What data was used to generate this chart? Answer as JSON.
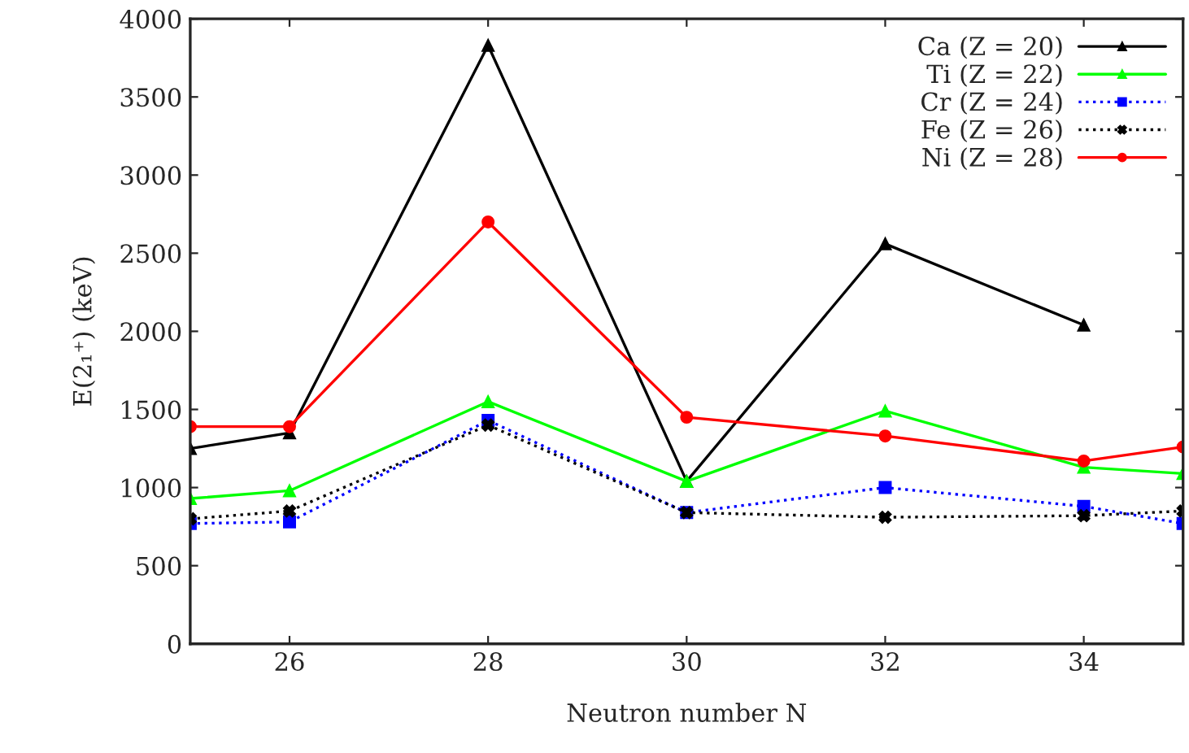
{
  "chart_data": {
    "type": "line",
    "xlabel": "Neutron number N",
    "ylabel": "E(2₁⁺) (keV)",
    "xlim": [
      25,
      35
    ],
    "xticks": [
      26,
      28,
      30,
      32,
      34
    ],
    "ylim": [
      0,
      4000
    ],
    "yticks": [
      0,
      500,
      1000,
      1500,
      2000,
      2500,
      3000,
      3500,
      4000
    ],
    "grid": false,
    "legend": "top right",
    "series": [
      {
        "name": "Ca (Z = 20)",
        "color": "#000000",
        "marker": "triangle",
        "line_style": "solid",
        "x": [
          25,
          26,
          28,
          30,
          32,
          34
        ],
        "values": [
          1250,
          1350,
          3830,
          1040,
          2560,
          2040
        ]
      },
      {
        "name": "Ti (Z = 22)",
        "color": "#00ff00",
        "marker": "triangle",
        "line_style": "solid",
        "x": [
          25,
          26,
          28,
          30,
          32,
          34,
          35
        ],
        "values": [
          930,
          980,
          1550,
          1040,
          1490,
          1130,
          1090
        ]
      },
      {
        "name": "Cr (Z = 24)",
        "color": "#0000ff",
        "marker": "square",
        "line_style": "dotted",
        "x": [
          25,
          26,
          28,
          30,
          32,
          34,
          35
        ],
        "values": [
          770,
          780,
          1430,
          840,
          1000,
          880,
          770
        ]
      },
      {
        "name": "Fe (Z = 26)",
        "color": "#000000",
        "marker": "cross",
        "line_style": "dotted",
        "x": [
          25,
          26,
          28,
          30,
          32,
          34,
          35
        ],
        "values": [
          800,
          850,
          1400,
          840,
          810,
          820,
          850
        ]
      },
      {
        "name": "Ni (Z = 28)",
        "color": "#ff0000",
        "marker": "circle",
        "line_style": "solid",
        "x": [
          25,
          26,
          28,
          30,
          32,
          34,
          35
        ],
        "values": [
          1390,
          1390,
          2700,
          1450,
          1330,
          1170,
          1260
        ]
      }
    ]
  }
}
